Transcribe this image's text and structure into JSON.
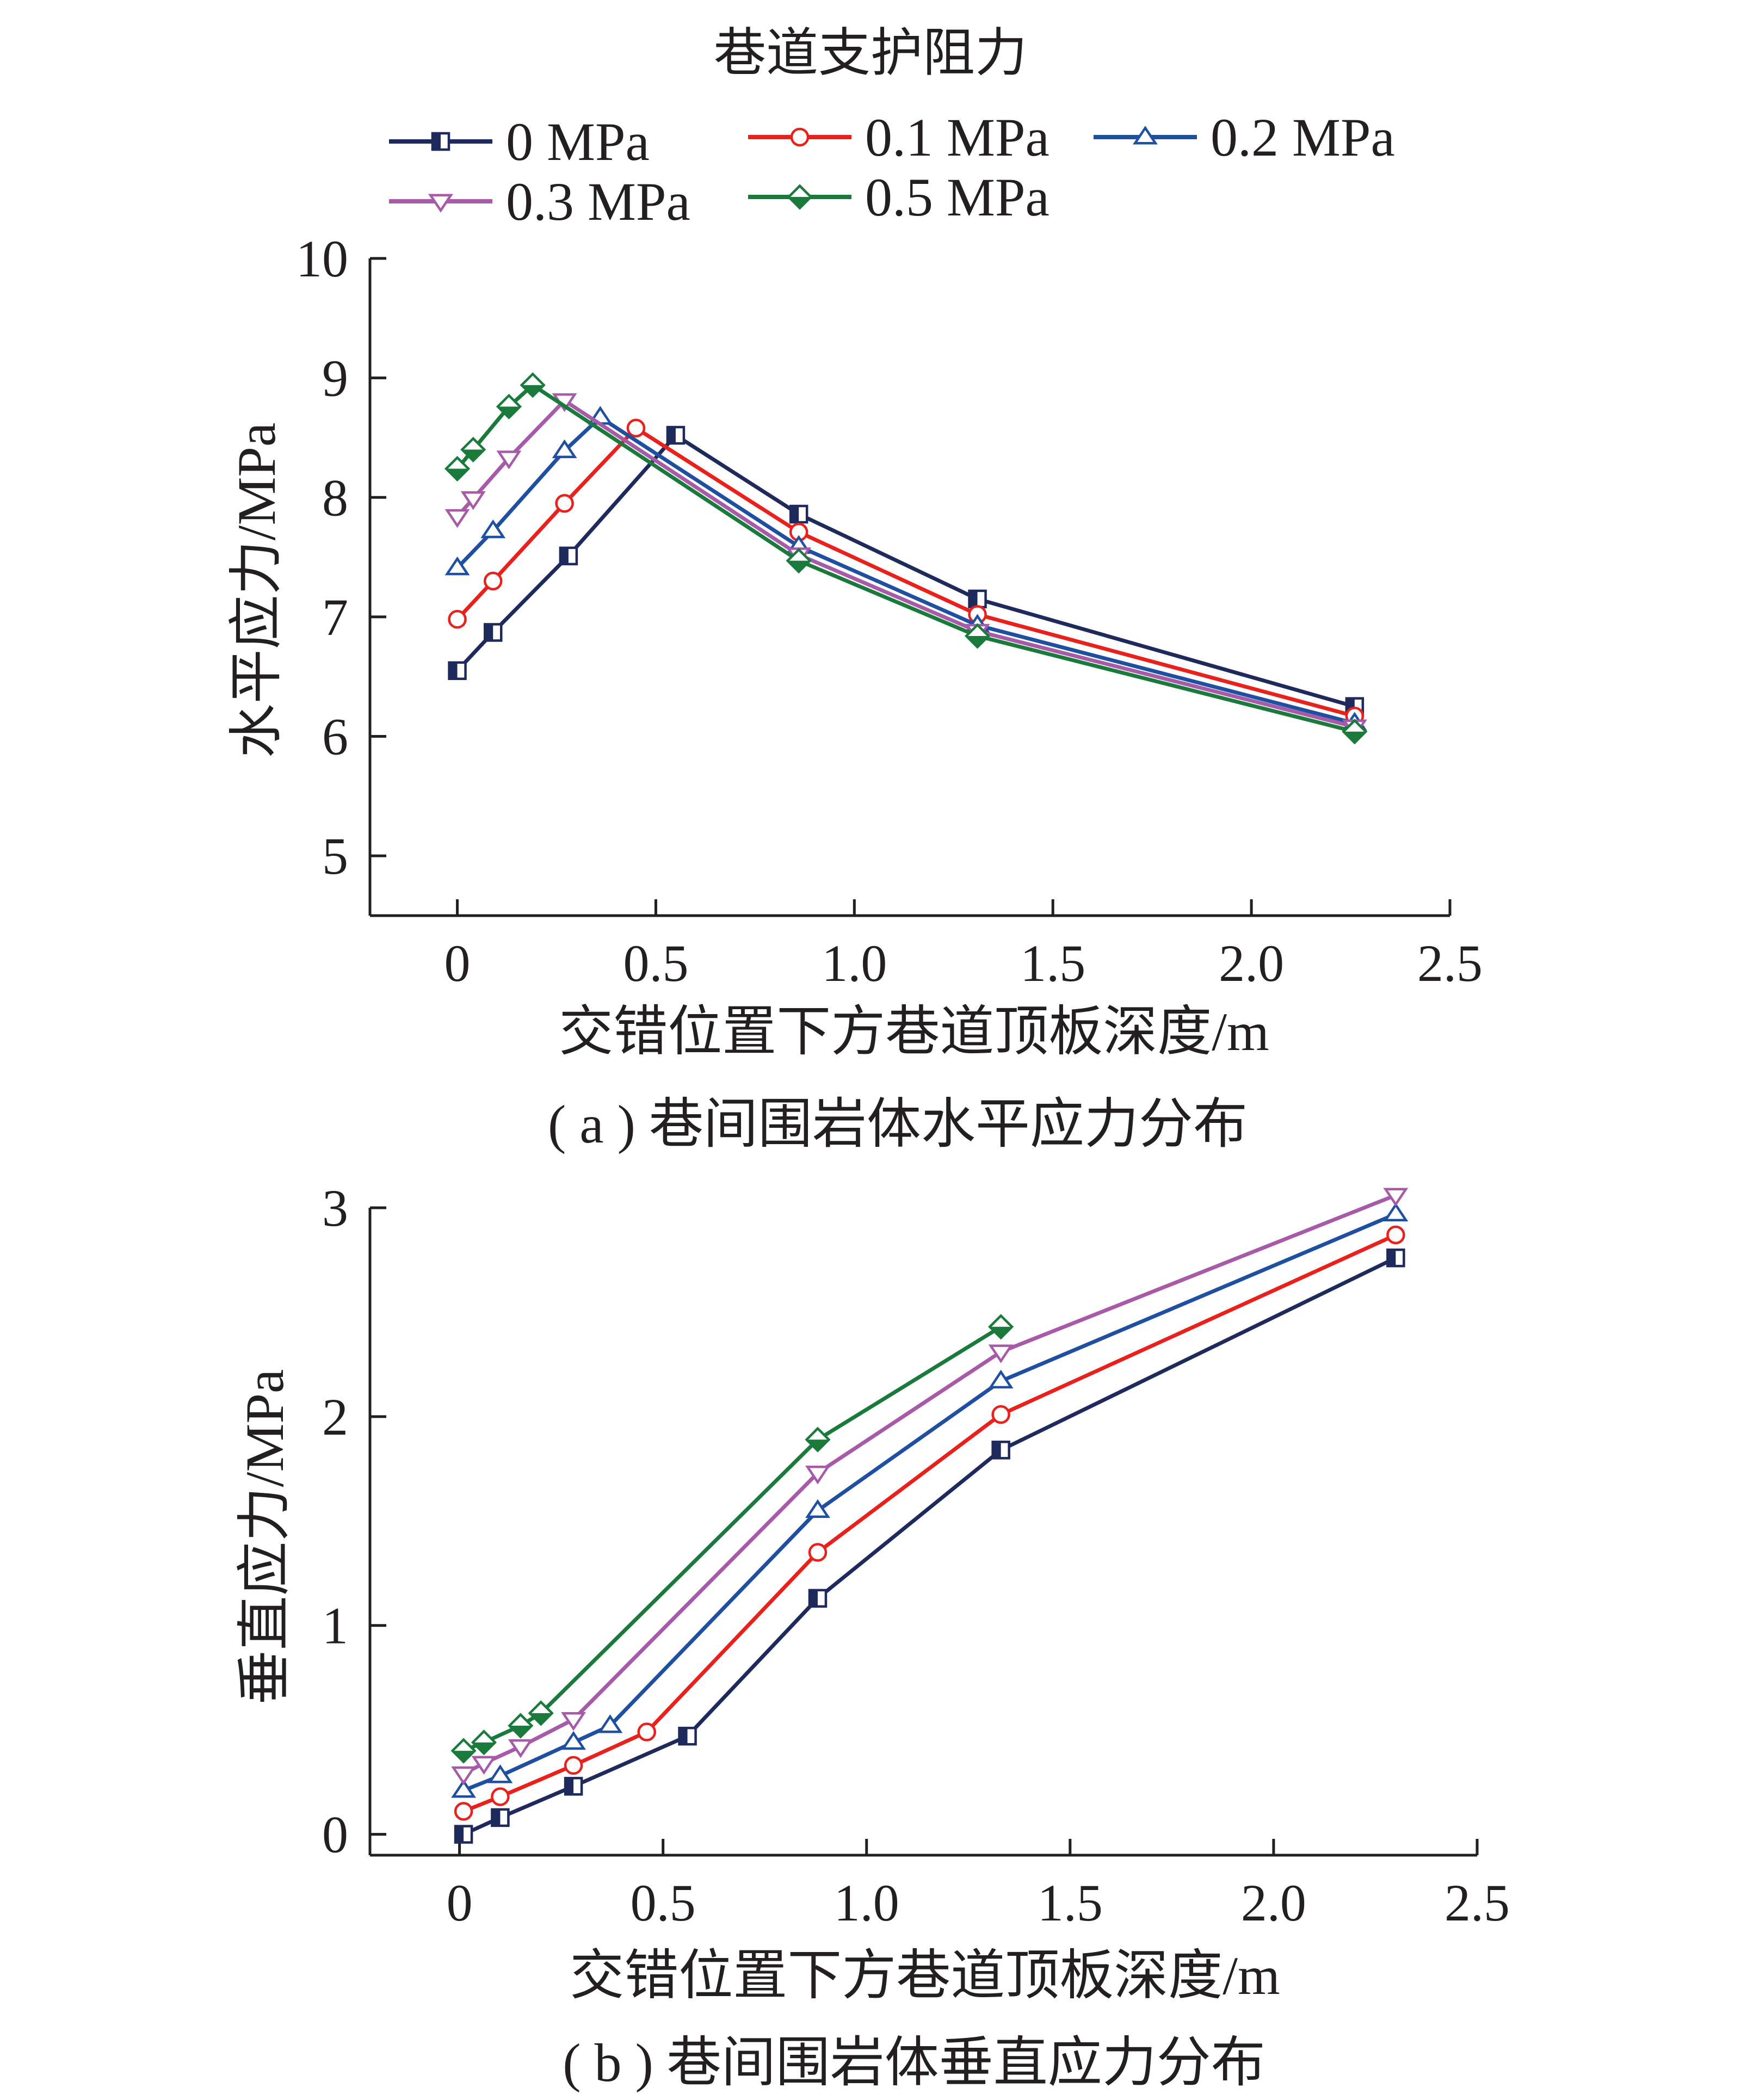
{
  "legend": {
    "title": "巷道支护阻力",
    "entries": [
      {
        "label": "0 MPa",
        "color": "#1f2a5c",
        "marker": "square"
      },
      {
        "label": "0.1 MPa",
        "color": "#e8211d",
        "marker": "circle"
      },
      {
        "label": "0.2 MPa",
        "color": "#1f4fa0",
        "marker": "triangle-up"
      },
      {
        "label": "0.3 MPa",
        "color": "#a65aa8",
        "marker": "triangle-down"
      },
      {
        "label": "0.5 MPa",
        "color": "#1a7a3c",
        "marker": "diamond"
      }
    ]
  },
  "chart_data": [
    {
      "type": "line",
      "caption": "( a ) 巷间围岩体水平应力分布",
      "xlabel": "交错位置下方巷道顶板深度/m",
      "ylabel": "水平应力/MPa",
      "xlim": [
        -0.22,
        2.5
      ],
      "ylim": [
        4.5,
        10
      ],
      "xticks": [
        0,
        0.5,
        1.0,
        1.5,
        2.0,
        2.5
      ],
      "xtick_labels": [
        "0",
        "0.5",
        "1.0",
        "1.5",
        "2.0",
        "2.5"
      ],
      "yticks": [
        5,
        6,
        7,
        8,
        9,
        10
      ],
      "ytick_labels": [
        "5",
        "6",
        "7",
        "8",
        "9",
        "10"
      ],
      "grid": false,
      "series": [
        {
          "name": "0 MPa",
          "x": [
            0,
            0.09,
            0.28,
            0.55,
            0.86,
            1.31,
            2.26
          ],
          "y": [
            6.55,
            6.87,
            7.51,
            8.52,
            7.86,
            7.15,
            6.25
          ]
        },
        {
          "name": "0.1 MPa",
          "x": [
            0,
            0.09,
            0.27,
            0.45,
            0.86,
            1.31,
            2.26
          ],
          "y": [
            6.98,
            7.3,
            7.95,
            8.58,
            7.71,
            7.02,
            6.17
          ]
        },
        {
          "name": "0.2 MPa",
          "x": [
            0,
            0.09,
            0.27,
            0.36,
            0.86,
            1.31,
            2.26
          ],
          "y": [
            7.41,
            7.72,
            8.39,
            8.67,
            7.59,
            6.93,
            6.11
          ]
        },
        {
          "name": "0.3 MPa",
          "x": [
            0,
            0.04,
            0.13,
            0.27,
            0.86,
            1.31,
            2.26
          ],
          "y": [
            7.84,
            7.99,
            8.33,
            8.81,
            7.52,
            6.88,
            6.08
          ]
        },
        {
          "name": "0.5 MPa",
          "x": [
            0,
            0.04,
            0.13,
            0.19,
            0.86,
            1.31,
            2.26
          ],
          "y": [
            8.24,
            8.4,
            8.76,
            8.94,
            7.47,
            6.84,
            6.04
          ]
        }
      ]
    },
    {
      "type": "line",
      "caption": "( b ) 巷间围岩体垂直应力分布",
      "xlabel": "交错位置下方巷道顶板深度/m",
      "ylabel": "垂直应力/MPa",
      "xlim": [
        -0.22,
        2.5
      ],
      "ylim": [
        -0.1,
        3
      ],
      "xticks": [
        0,
        0.5,
        1.0,
        1.5,
        2.0,
        2.5
      ],
      "xtick_labels": [
        "0",
        "0.5",
        "1.0",
        "1.5",
        "2.0",
        "2.5"
      ],
      "yticks": [
        0,
        1,
        2,
        3
      ],
      "ytick_labels": [
        "0",
        "1",
        "2",
        "3"
      ],
      "grid": false,
      "series": [
        {
          "name": "0 MPa",
          "x": [
            0.01,
            0.1,
            0.28,
            0.56,
            0.88,
            1.33,
            2.3
          ],
          "y": [
            0.0,
            0.08,
            0.23,
            0.47,
            1.13,
            1.84,
            2.76
          ]
        },
        {
          "name": "0.1 MPa",
          "x": [
            0.01,
            0.1,
            0.28,
            0.46,
            0.88,
            1.33,
            2.3
          ],
          "y": [
            0.11,
            0.18,
            0.33,
            0.49,
            1.35,
            2.01,
            2.87
          ]
        },
        {
          "name": "0.2 MPa",
          "x": [
            0.01,
            0.1,
            0.28,
            0.37,
            0.88,
            1.33,
            2.3
          ],
          "y": [
            0.21,
            0.28,
            0.44,
            0.52,
            1.55,
            2.17,
            2.97
          ]
        },
        {
          "name": "0.3 MPa",
          "x": [
            0.01,
            0.06,
            0.15,
            0.28,
            0.88,
            1.33,
            2.3
          ],
          "y": [
            0.29,
            0.34,
            0.42,
            0.55,
            1.73,
            2.31,
            3.06
          ]
        },
        {
          "name": "0.5 MPa",
          "x": [
            0.01,
            0.06,
            0.15,
            0.2,
            0.88,
            1.33
          ],
          "y": [
            0.4,
            0.44,
            0.52,
            0.58,
            1.89,
            2.43
          ]
        }
      ]
    }
  ]
}
